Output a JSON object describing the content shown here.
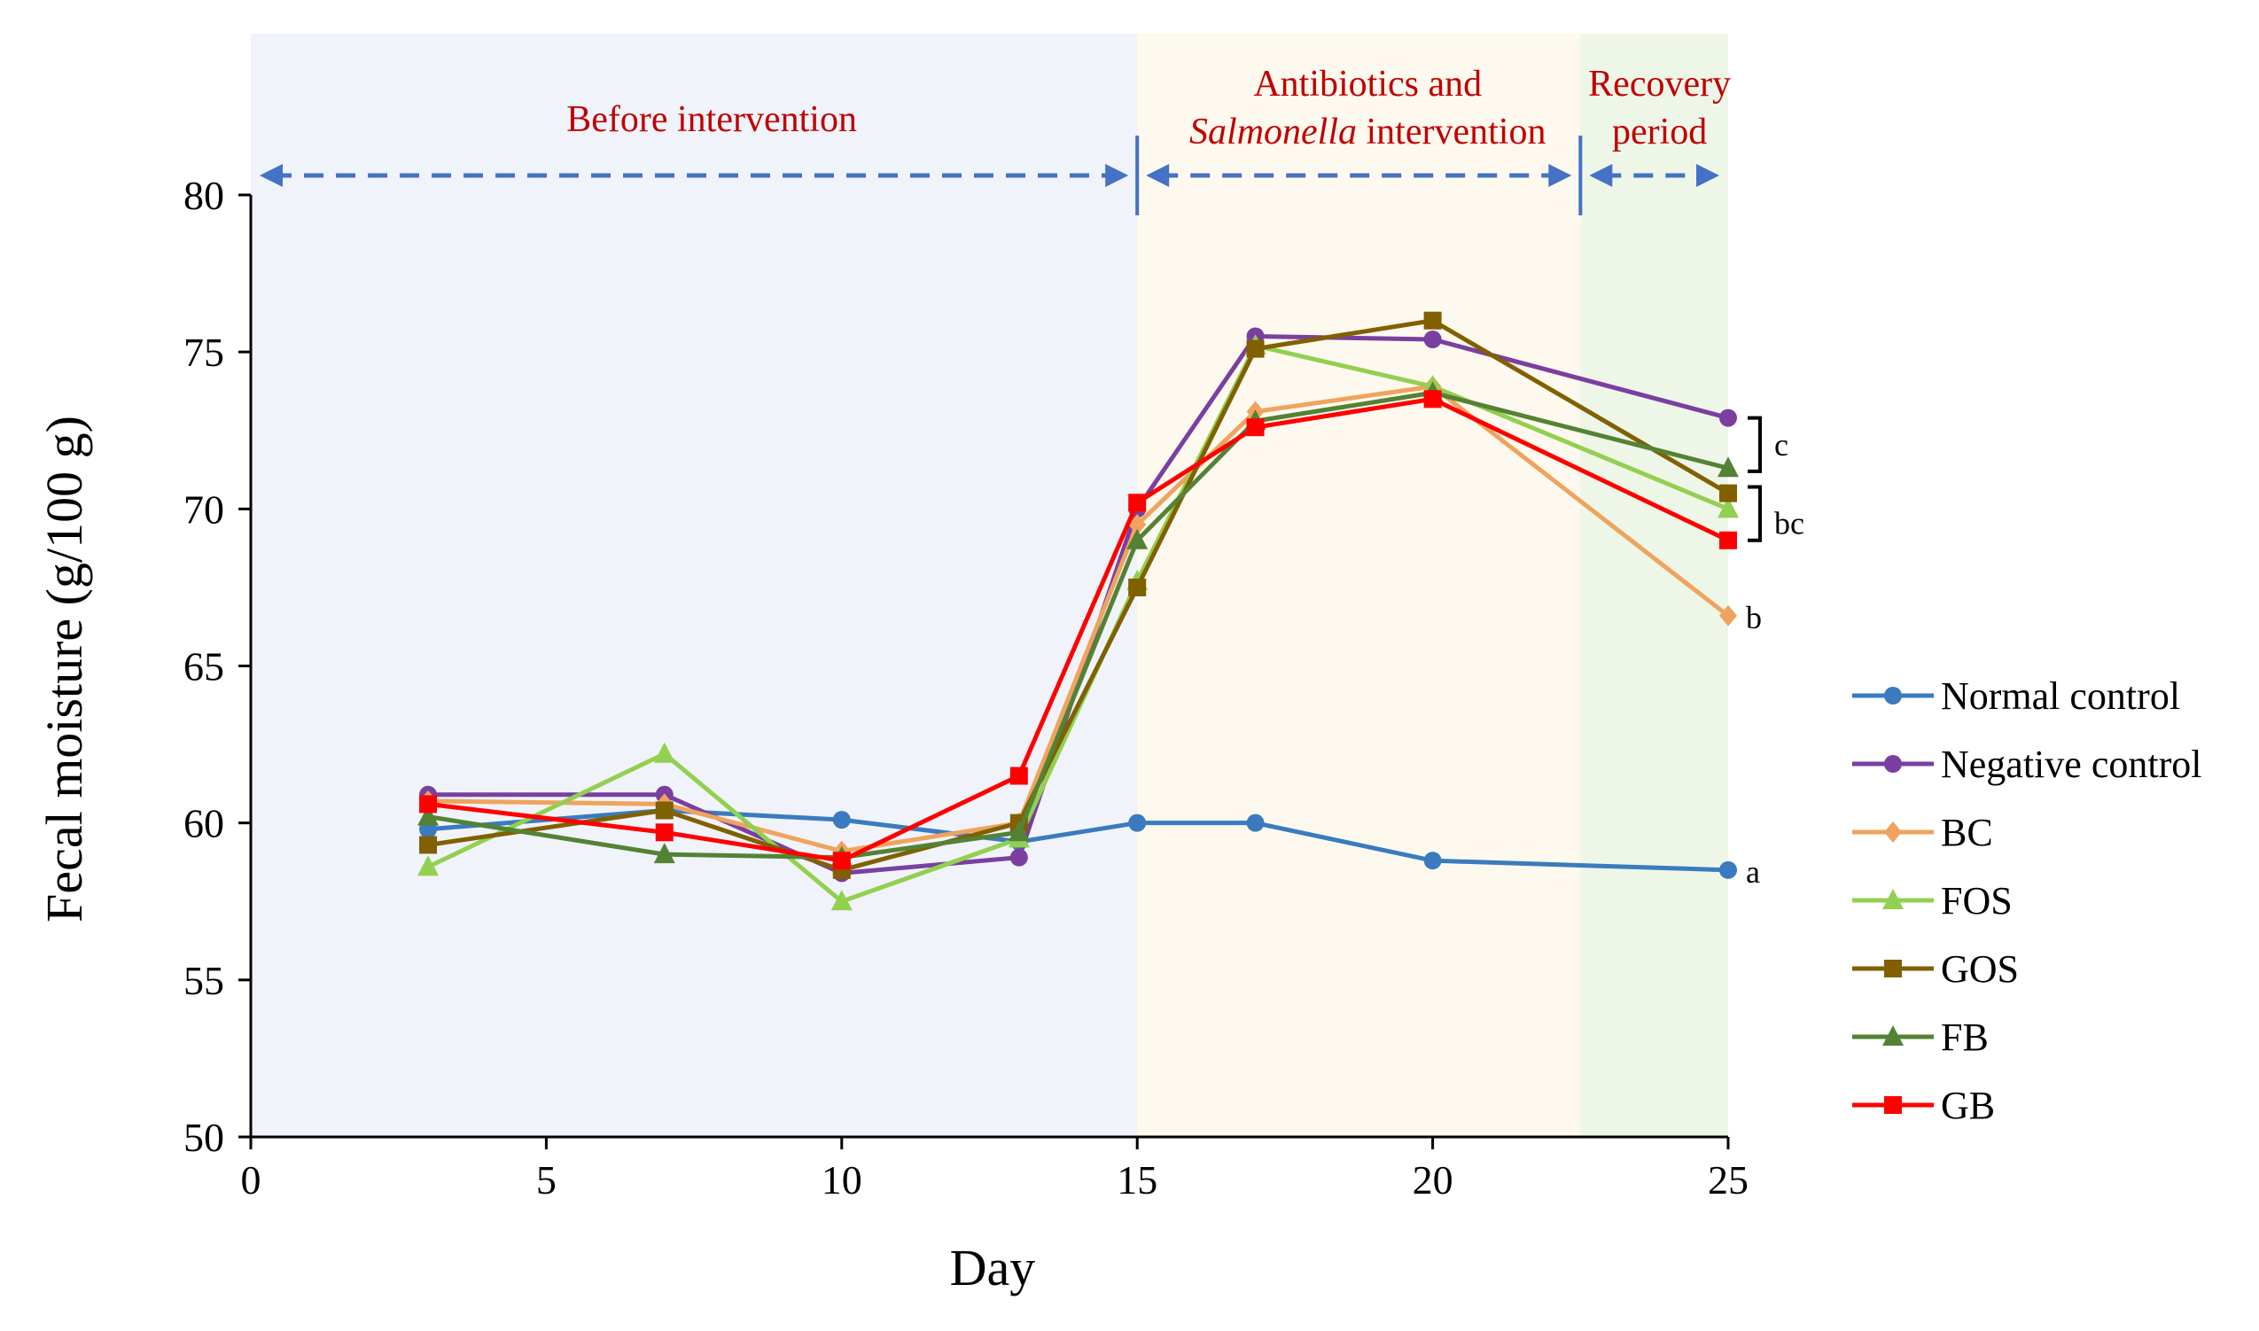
{
  "chart_data": {
    "type": "line",
    "title": "",
    "xlabel": "Day",
    "ylabel": "Fecal moisture (g/100 g)",
    "xlim": [
      0,
      25
    ],
    "ylim": [
      50,
      80
    ],
    "xticks": [
      0,
      5,
      10,
      15,
      20,
      25
    ],
    "yticks": [
      50,
      55,
      60,
      65,
      70,
      75,
      80
    ],
    "grid": false,
    "legend_position": "right",
    "phases": [
      {
        "start": 0,
        "end": 15,
        "color": "#f0f3fa",
        "label_lines": [
          "Before intervention"
        ]
      },
      {
        "start": 15,
        "end": 22.5,
        "color": "#fef9ee",
        "label_lines": [
          "Antibiotics and",
          "Salmonella intervention"
        ],
        "italic_word": "Salmonella"
      },
      {
        "start": 22.5,
        "end": 25,
        "color": "#eef6e8",
        "label_lines": [
          "Recovery",
          "period"
        ]
      }
    ],
    "series": [
      {
        "name": "Normal control",
        "color": "#3a7bbf",
        "marker": "circle",
        "x": [
          3,
          7,
          10,
          13,
          15,
          17,
          20,
          25
        ],
        "y": [
          59.8,
          60.4,
          60.1,
          59.4,
          60.0,
          60.0,
          58.8,
          58.5
        ]
      },
      {
        "name": "Negative control",
        "color": "#7a3fa0",
        "marker": "circle",
        "x": [
          3,
          7,
          10,
          13,
          15,
          17,
          20,
          25
        ],
        "y": [
          60.9,
          60.9,
          58.4,
          58.9,
          70.0,
          75.5,
          75.4,
          72.9
        ]
      },
      {
        "name": "BC",
        "color": "#f0a35e",
        "marker": "diamond",
        "x": [
          3,
          7,
          10,
          13,
          15,
          17,
          20,
          25
        ],
        "y": [
          60.7,
          60.6,
          59.1,
          60.0,
          69.5,
          73.1,
          73.9,
          66.6
        ]
      },
      {
        "name": "FOS",
        "color": "#92d050",
        "marker": "triangle",
        "x": [
          3,
          7,
          10,
          13,
          15,
          17,
          20,
          25
        ],
        "y": [
          58.6,
          62.2,
          57.5,
          59.5,
          67.7,
          75.2,
          73.9,
          70.0
        ]
      },
      {
        "name": "GOS",
        "color": "#806000",
        "marker": "square",
        "x": [
          3,
          7,
          10,
          13,
          15,
          17,
          20,
          25
        ],
        "y": [
          59.3,
          60.4,
          58.5,
          60.0,
          67.5,
          75.1,
          76.0,
          70.5
        ]
      },
      {
        "name": "FB",
        "color": "#548235",
        "marker": "triangle",
        "x": [
          3,
          7,
          10,
          13,
          15,
          17,
          20,
          25
        ],
        "y": [
          60.2,
          59.0,
          58.9,
          59.7,
          69.0,
          72.8,
          73.7,
          71.3
        ]
      },
      {
        "name": "GB",
        "color": "#ff0000",
        "marker": "square",
        "x": [
          3,
          7,
          10,
          13,
          15,
          17,
          20,
          25
        ],
        "y": [
          60.6,
          59.7,
          58.8,
          61.5,
          70.2,
          72.6,
          73.5,
          69.0
        ]
      }
    ],
    "annotations": [
      {
        "label": "a",
        "x": 25,
        "y": 58.5
      },
      {
        "label": "b",
        "x": 25,
        "y": 66.6
      },
      {
        "label": "bc",
        "x": 25,
        "y": 69.6,
        "bracket": [
          69.0,
          70.7
        ]
      },
      {
        "label": "c",
        "x": 25,
        "y": 72.1,
        "bracket": [
          71.2,
          72.9
        ]
      }
    ]
  }
}
